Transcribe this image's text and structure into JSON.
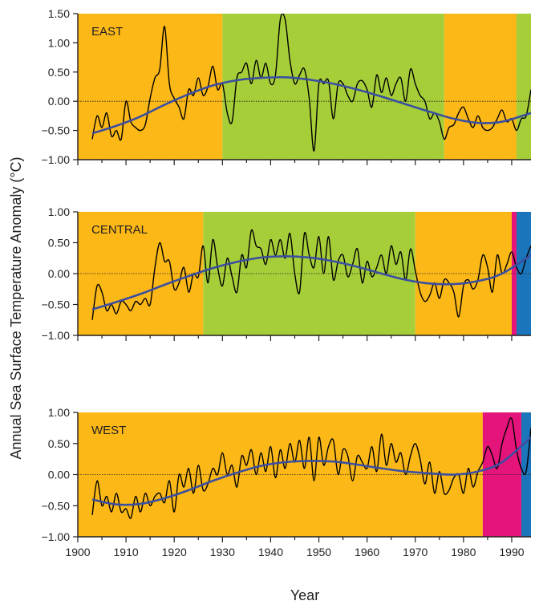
{
  "figure": {
    "ylabel": "Annual Sea Surface Temperature Anomaly (°C)",
    "xlabel": "Year"
  },
  "colors": {
    "orange": "#fbb817",
    "green": "#a6ce39",
    "magenta": "#e5147a",
    "blue": "#1b75bb",
    "trend": "#3b4fa0",
    "data_line": "#000000"
  },
  "chart_data": [
    {
      "type": "line",
      "title": "EAST",
      "xlim": [
        1900,
        1994
      ],
      "ylim": [
        -1.0,
        1.5
      ],
      "yticks": [
        -1.0,
        -0.5,
        0.0,
        0.5,
        1.0,
        1.5
      ],
      "ytick_labels": [
        "−1.00",
        "−0.50",
        "0.00",
        "0.50",
        "1.00",
        "1.50"
      ],
      "xticks": [
        1900,
        1910,
        1920,
        1930,
        1940,
        1950,
        1960,
        1970,
        1980,
        1990
      ],
      "xtick_labels": [
        "1900",
        "1910",
        "1920",
        "1930",
        "1940",
        "1950",
        "1960",
        "1970",
        "1980",
        "1990"
      ],
      "bands": [
        {
          "from": 1900,
          "to": 1930,
          "color": "orange"
        },
        {
          "from": 1930,
          "to": 1976,
          "color": "green"
        },
        {
          "from": 1976,
          "to": 1991,
          "color": "orange"
        },
        {
          "from": 1991,
          "to": 1994,
          "color": "green"
        }
      ],
      "series": [
        {
          "x": [
            1903,
            1904,
            1905,
            1906,
            1907,
            1908,
            1909,
            1910,
            1911,
            1912,
            1913,
            1914,
            1915,
            1916,
            1917,
            1918,
            1919,
            1920,
            1921,
            1922,
            1923,
            1924,
            1925,
            1926,
            1927,
            1928,
            1929,
            1930,
            1931,
            1932,
            1933,
            1934,
            1935,
            1936,
            1937,
            1938,
            1939,
            1940,
            1941,
            1942,
            1943,
            1944,
            1945,
            1946,
            1947,
            1948,
            1949,
            1950,
            1951,
            1952,
            1953,
            1954,
            1955,
            1956,
            1957,
            1958,
            1959,
            1960,
            1961,
            1962,
            1963,
            1964,
            1965,
            1966,
            1967,
            1968,
            1969,
            1970,
            1971,
            1972,
            1973,
            1974,
            1975,
            1976,
            1977,
            1978,
            1979,
            1980,
            1981,
            1982,
            1983,
            1984,
            1985,
            1986,
            1987,
            1988,
            1989,
            1990,
            1991,
            1992,
            1993,
            1994
          ],
          "y": [
            -0.65,
            -0.25,
            -0.45,
            -0.2,
            -0.6,
            -0.5,
            -0.65,
            0.0,
            -0.35,
            -0.45,
            -0.5,
            -0.4,
            0.05,
            0.4,
            0.55,
            1.28,
            0.3,
            0.05,
            -0.1,
            -0.3,
            0.2,
            0.1,
            0.4,
            0.1,
            0.25,
            0.6,
            0.2,
            0.3,
            -0.2,
            -0.35,
            0.4,
            0.5,
            0.65,
            0.3,
            0.7,
            0.4,
            0.65,
            0.3,
            0.45,
            1.4,
            1.4,
            0.7,
            0.3,
            0.45,
            0.55,
            0.05,
            -0.85,
            0.3,
            0.3,
            0.35,
            -0.3,
            0.3,
            0.3,
            0.1,
            0.0,
            0.3,
            0.35,
            0.2,
            -0.1,
            0.45,
            0.15,
            0.4,
            0.1,
            0.3,
            0.4,
            0.0,
            0.55,
            0.3,
            0.1,
            0.0,
            -0.3,
            -0.2,
            -0.35,
            -0.65,
            -0.45,
            -0.4,
            -0.2,
            -0.1,
            -0.3,
            -0.45,
            -0.25,
            -0.45,
            -0.5,
            -0.45,
            -0.3,
            -0.15,
            -0.35,
            -0.3,
            -0.5,
            -0.3,
            -0.25,
            0.2
          ]
        },
        {
          "name": "trend",
          "x": [
            1903,
            1908,
            1913,
            1918,
            1923,
            1928,
            1933,
            1938,
            1943,
            1948,
            1953,
            1958,
            1963,
            1968,
            1973,
            1978,
            1983,
            1988,
            1994
          ],
          "y": [
            -0.55,
            -0.42,
            -0.26,
            -0.06,
            0.12,
            0.27,
            0.36,
            0.4,
            0.41,
            0.37,
            0.3,
            0.2,
            0.08,
            -0.05,
            -0.18,
            -0.3,
            -0.37,
            -0.35,
            -0.2
          ]
        }
      ]
    },
    {
      "type": "line",
      "title": "CENTRAL",
      "xlim": [
        1900,
        1994
      ],
      "ylim": [
        -1.0,
        1.0
      ],
      "yticks": [
        -1.0,
        -0.5,
        0.0,
        0.5,
        1.0
      ],
      "ytick_labels": [
        "−1.00",
        "−0.50",
        "0.00",
        "0.50",
        "1.00"
      ],
      "xticks": [
        1900,
        1910,
        1920,
        1930,
        1940,
        1950,
        1960,
        1970,
        1980,
        1990
      ],
      "xtick_labels": [
        "1900",
        "1910",
        "1920",
        "1930",
        "1940",
        "1950",
        "1960",
        "1970",
        "1980",
        "1990"
      ],
      "bands": [
        {
          "from": 1900,
          "to": 1926,
          "color": "orange"
        },
        {
          "from": 1926,
          "to": 1970,
          "color": "green"
        },
        {
          "from": 1970,
          "to": 1990,
          "color": "orange"
        },
        {
          "from": 1990,
          "to": 1991,
          "color": "magenta"
        },
        {
          "from": 1991,
          "to": 1994,
          "color": "blue"
        }
      ],
      "series": [
        {
          "x": [
            1903,
            1904,
            1905,
            1906,
            1907,
            1908,
            1909,
            1910,
            1911,
            1912,
            1913,
            1914,
            1915,
            1916,
            1917,
            1918,
            1919,
            1920,
            1921,
            1922,
            1923,
            1924,
            1925,
            1926,
            1927,
            1928,
            1929,
            1930,
            1931,
            1932,
            1933,
            1934,
            1935,
            1936,
            1937,
            1938,
            1939,
            1940,
            1941,
            1942,
            1943,
            1944,
            1945,
            1946,
            1947,
            1948,
            1949,
            1950,
            1951,
            1952,
            1953,
            1954,
            1955,
            1956,
            1957,
            1958,
            1959,
            1960,
            1961,
            1962,
            1963,
            1964,
            1965,
            1966,
            1967,
            1968,
            1969,
            1970,
            1971,
            1972,
            1973,
            1974,
            1975,
            1976,
            1977,
            1978,
            1979,
            1980,
            1981,
            1982,
            1983,
            1984,
            1985,
            1986,
            1987,
            1988,
            1989,
            1990,
            1991,
            1992,
            1993,
            1994
          ],
          "y": [
            -0.75,
            -0.2,
            -0.3,
            -0.6,
            -0.5,
            -0.65,
            -0.45,
            -0.5,
            -0.6,
            -0.45,
            -0.5,
            -0.4,
            -0.5,
            0.1,
            0.5,
            0.2,
            0.2,
            -0.25,
            -0.15,
            0.1,
            -0.3,
            0.0,
            -0.05,
            0.45,
            -0.15,
            0.55,
            0.1,
            -0.2,
            0.25,
            -0.05,
            -0.3,
            0.3,
            0.1,
            0.7,
            0.45,
            0.4,
            0.15,
            0.55,
            0.3,
            0.55,
            0.25,
            0.65,
            0.0,
            -0.3,
            0.65,
            0.3,
            0.1,
            0.6,
            0.0,
            0.6,
            -0.1,
            0.2,
            0.3,
            -0.05,
            0.15,
            0.4,
            -0.15,
            0.2,
            -0.05,
            0.1,
            0.3,
            0.0,
            0.45,
            0.15,
            0.35,
            -0.1,
            0.4,
            0.05,
            -0.3,
            -0.45,
            -0.35,
            -0.15,
            -0.4,
            -0.1,
            -0.15,
            -0.3,
            -0.7,
            -0.2,
            -0.1,
            -0.25,
            -0.1,
            0.3,
            0.1,
            -0.3,
            0.3,
            0.0,
            0.15,
            0.35,
            0.1,
            0.0,
            0.25,
            0.45
          ]
        },
        {
          "name": "trend",
          "x": [
            1903,
            1908,
            1913,
            1918,
            1923,
            1928,
            1933,
            1938,
            1943,
            1948,
            1953,
            1958,
            1963,
            1968,
            1973,
            1978,
            1983,
            1988,
            1994
          ],
          "y": [
            -0.58,
            -0.46,
            -0.33,
            -0.18,
            -0.04,
            0.09,
            0.19,
            0.26,
            0.28,
            0.26,
            0.2,
            0.11,
            0.0,
            -0.1,
            -0.16,
            -0.17,
            -0.12,
            0.0,
            0.3
          ]
        }
      ]
    },
    {
      "type": "line",
      "title": "WEST",
      "xlim": [
        1900,
        1994
      ],
      "ylim": [
        -1.0,
        1.0
      ],
      "yticks": [
        -1.0,
        -0.5,
        0.0,
        0.5,
        1.0
      ],
      "ytick_labels": [
        "−1.00",
        "−0.50",
        "0.00",
        "0.50",
        "1.00"
      ],
      "xticks": [
        1900,
        1910,
        1920,
        1930,
        1940,
        1950,
        1960,
        1970,
        1980,
        1990
      ],
      "xtick_labels": [
        "1900",
        "1910",
        "1920",
        "1930",
        "1940",
        "1950",
        "1960",
        "1970",
        "1980",
        "1990"
      ],
      "bands": [
        {
          "from": 1900,
          "to": 1984,
          "color": "orange"
        },
        {
          "from": 1984,
          "to": 1992,
          "color": "magenta"
        },
        {
          "from": 1992,
          "to": 1994,
          "color": "blue"
        }
      ],
      "series": [
        {
          "x": [
            1903,
            1904,
            1905,
            1906,
            1907,
            1908,
            1909,
            1910,
            1911,
            1912,
            1913,
            1914,
            1915,
            1916,
            1917,
            1918,
            1919,
            1920,
            1921,
            1922,
            1923,
            1924,
            1925,
            1926,
            1927,
            1928,
            1929,
            1930,
            1931,
            1932,
            1933,
            1934,
            1935,
            1936,
            1937,
            1938,
            1939,
            1940,
            1941,
            1942,
            1943,
            1944,
            1945,
            1946,
            1947,
            1948,
            1949,
            1950,
            1951,
            1952,
            1953,
            1954,
            1955,
            1956,
            1957,
            1958,
            1959,
            1960,
            1961,
            1962,
            1963,
            1964,
            1965,
            1966,
            1967,
            1968,
            1969,
            1970,
            1971,
            1972,
            1973,
            1974,
            1975,
            1976,
            1977,
            1978,
            1979,
            1980,
            1981,
            1982,
            1983,
            1984,
            1985,
            1986,
            1987,
            1988,
            1989,
            1990,
            1991,
            1992,
            1993,
            1994
          ],
          "y": [
            -0.65,
            -0.1,
            -0.5,
            -0.35,
            -0.6,
            -0.3,
            -0.6,
            -0.55,
            -0.7,
            -0.35,
            -0.6,
            -0.3,
            -0.5,
            -0.35,
            -0.3,
            -0.45,
            -0.1,
            -0.6,
            0.0,
            -0.2,
            0.1,
            -0.3,
            0.15,
            -0.25,
            -0.15,
            0.1,
            0.0,
            0.35,
            0.0,
            0.15,
            -0.2,
            0.3,
            0.15,
            0.4,
            0.0,
            0.35,
            0.05,
            0.45,
            -0.05,
            0.4,
            0.1,
            0.5,
            0.2,
            0.55,
            0.1,
            0.6,
            -0.1,
            0.6,
            0.15,
            0.45,
            0.55,
            0.0,
            0.4,
            0.3,
            -0.1,
            0.3,
            0.2,
            0.1,
            0.45,
            0.05,
            0.65,
            0.15,
            0.5,
            0.2,
            0.35,
            0.0,
            0.3,
            0.5,
            0.25,
            -0.15,
            0.2,
            -0.3,
            0.05,
            -0.3,
            -0.25,
            -0.05,
            0.0,
            -0.3,
            0.1,
            -0.2,
            0.05,
            0.2,
            0.45,
            0.3,
            0.1,
            0.5,
            0.75,
            0.9,
            0.4,
            0.1,
            0.05,
            0.75
          ]
        },
        {
          "name": "trend",
          "x": [
            1903,
            1908,
            1913,
            1918,
            1923,
            1928,
            1933,
            1938,
            1943,
            1948,
            1953,
            1958,
            1963,
            1968,
            1973,
            1978,
            1983,
            1988,
            1994
          ],
          "y": [
            -0.4,
            -0.48,
            -0.47,
            -0.38,
            -0.25,
            -0.1,
            0.03,
            0.14,
            0.2,
            0.22,
            0.21,
            0.16,
            0.1,
            0.05,
            0.02,
            0.0,
            0.05,
            0.2,
            0.6
          ]
        }
      ]
    }
  ]
}
